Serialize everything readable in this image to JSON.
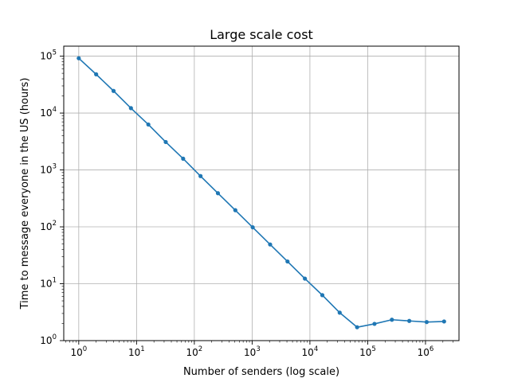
{
  "chart_data": {
    "type": "line",
    "title": "Large scale cost",
    "xlabel": "Number of senders (log scale)",
    "ylabel": "Time to message everyone in the US (hours)",
    "xscale": "log",
    "yscale": "log",
    "xlim": [
      0.55,
      3800000
    ],
    "ylim": [
      1,
      150000
    ],
    "grid": true,
    "color": "#1f77b4",
    "x_ticks": [
      {
        "base": "10",
        "exp": "0",
        "value": 1
      },
      {
        "base": "10",
        "exp": "1",
        "value": 10
      },
      {
        "base": "10",
        "exp": "2",
        "value": 100
      },
      {
        "base": "10",
        "exp": "3",
        "value": 1000
      },
      {
        "base": "10",
        "exp": "4",
        "value": 10000
      },
      {
        "base": "10",
        "exp": "5",
        "value": 100000
      },
      {
        "base": "10",
        "exp": "6",
        "value": 1000000
      }
    ],
    "y_ticks": [
      {
        "base": "10",
        "exp": "0",
        "value": 1
      },
      {
        "base": "10",
        "exp": "1",
        "value": 10
      },
      {
        "base": "10",
        "exp": "2",
        "value": 100
      },
      {
        "base": "10",
        "exp": "3",
        "value": 1000
      },
      {
        "base": "10",
        "exp": "4",
        "value": 10000
      },
      {
        "base": "10",
        "exp": "5",
        "value": 100000
      }
    ],
    "series": [
      {
        "x": [
          1,
          2,
          4,
          8,
          16,
          32,
          64,
          128,
          256,
          512,
          1024,
          2048,
          4096,
          8192,
          16384,
          32768,
          65536,
          131072,
          262144,
          524288,
          1048576,
          2097152
        ],
        "y": [
          92000,
          48000,
          24500,
          12200,
          6300,
          3100,
          1580,
          780,
          390,
          196,
          98,
          49,
          24.6,
          12.3,
          6.3,
          3.1,
          1.72,
          1.97,
          2.33,
          2.22,
          2.12,
          2.17
        ]
      }
    ]
  }
}
